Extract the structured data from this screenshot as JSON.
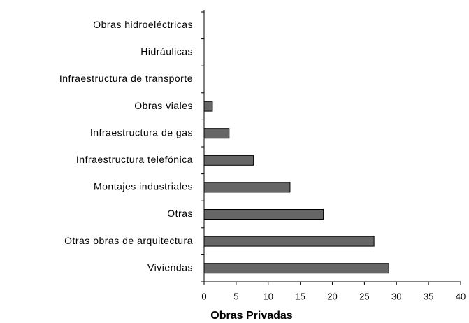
{
  "chart_data": {
    "type": "bar",
    "orientation": "horizontal",
    "xlabel": "Obras Privadas",
    "categories": [
      "Obras hidroeléctricas",
      "Hidráulicas",
      "Infraestructura de transporte",
      "Obras viales",
      "Infraestructura de gas",
      "Infraestructura telefónica",
      "Montajes industriales",
      "Otras",
      "Otras obras de arquitectura",
      "Viviendas"
    ],
    "values": [
      0,
      0,
      0,
      1.3,
      3.9,
      7.7,
      13.4,
      18.6,
      26.5,
      28.8
    ],
    "color": "#666666",
    "xlim": [
      0,
      40
    ],
    "xticks": [
      0,
      5,
      10,
      15,
      20,
      25,
      30,
      35,
      40
    ],
    "grid": false
  }
}
